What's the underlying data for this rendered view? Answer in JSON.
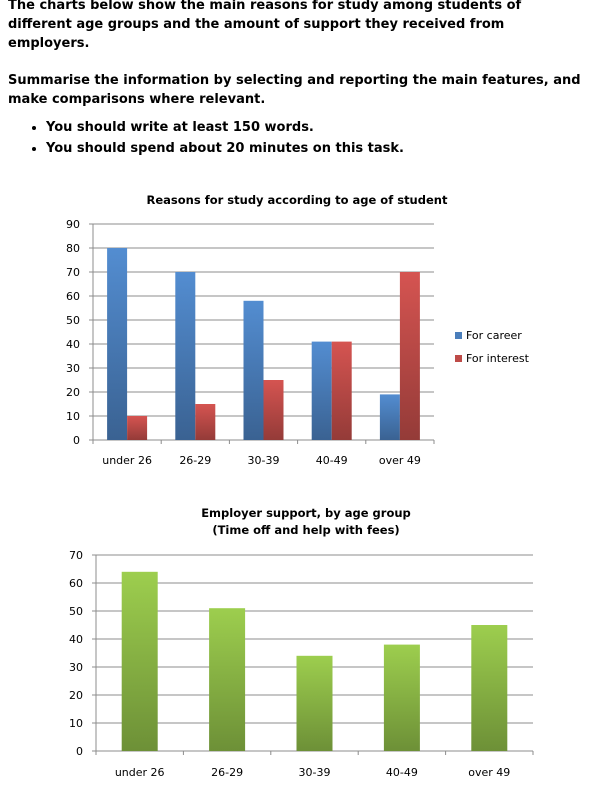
{
  "task": {
    "intro": "The charts below show the main reasons for study among students of different age groups and the amount of support they received from employers.",
    "instruction": "Summarise the information by selecting and reporting the main features, and make comparisons where relevant.",
    "bullets": [
      "You should write at least 150 words.",
      "You should spend about 20 minutes on this task."
    ]
  },
  "chart_data": [
    {
      "type": "bar",
      "title": "Reasons for study according to age of student",
      "subtitle": "",
      "xlabel": "",
      "ylabel": "",
      "categories": [
        "under 26",
        "26-29",
        "30-39",
        "40-49",
        "over 49"
      ],
      "series": [
        {
          "name": "For career",
          "values": [
            80,
            70,
            58,
            41,
            19
          ],
          "color": "#4a7ebb"
        },
        {
          "name": "For interest",
          "values": [
            10,
            15,
            25,
            41,
            70
          ],
          "color": "#be4b48"
        }
      ],
      "ylim": [
        0,
        90
      ],
      "yticks": [
        0,
        10,
        20,
        30,
        40,
        50,
        60,
        70,
        80,
        90
      ],
      "grid": true,
      "legend": "right"
    },
    {
      "type": "bar",
      "title": "Employer support, by age group",
      "subtitle": "(Time off and help with fees)",
      "xlabel": "",
      "ylabel": "",
      "categories": [
        "under 26",
        "26-29",
        "30-39",
        "40-49",
        "over 49"
      ],
      "series": [
        {
          "values": [
            64,
            51,
            34,
            38,
            45
          ],
          "color": "#8cb846"
        }
      ],
      "ylim": [
        0,
        70
      ],
      "yticks": [
        0,
        10,
        20,
        30,
        40,
        50,
        60,
        70
      ],
      "grid": true,
      "legend": "none"
    }
  ]
}
